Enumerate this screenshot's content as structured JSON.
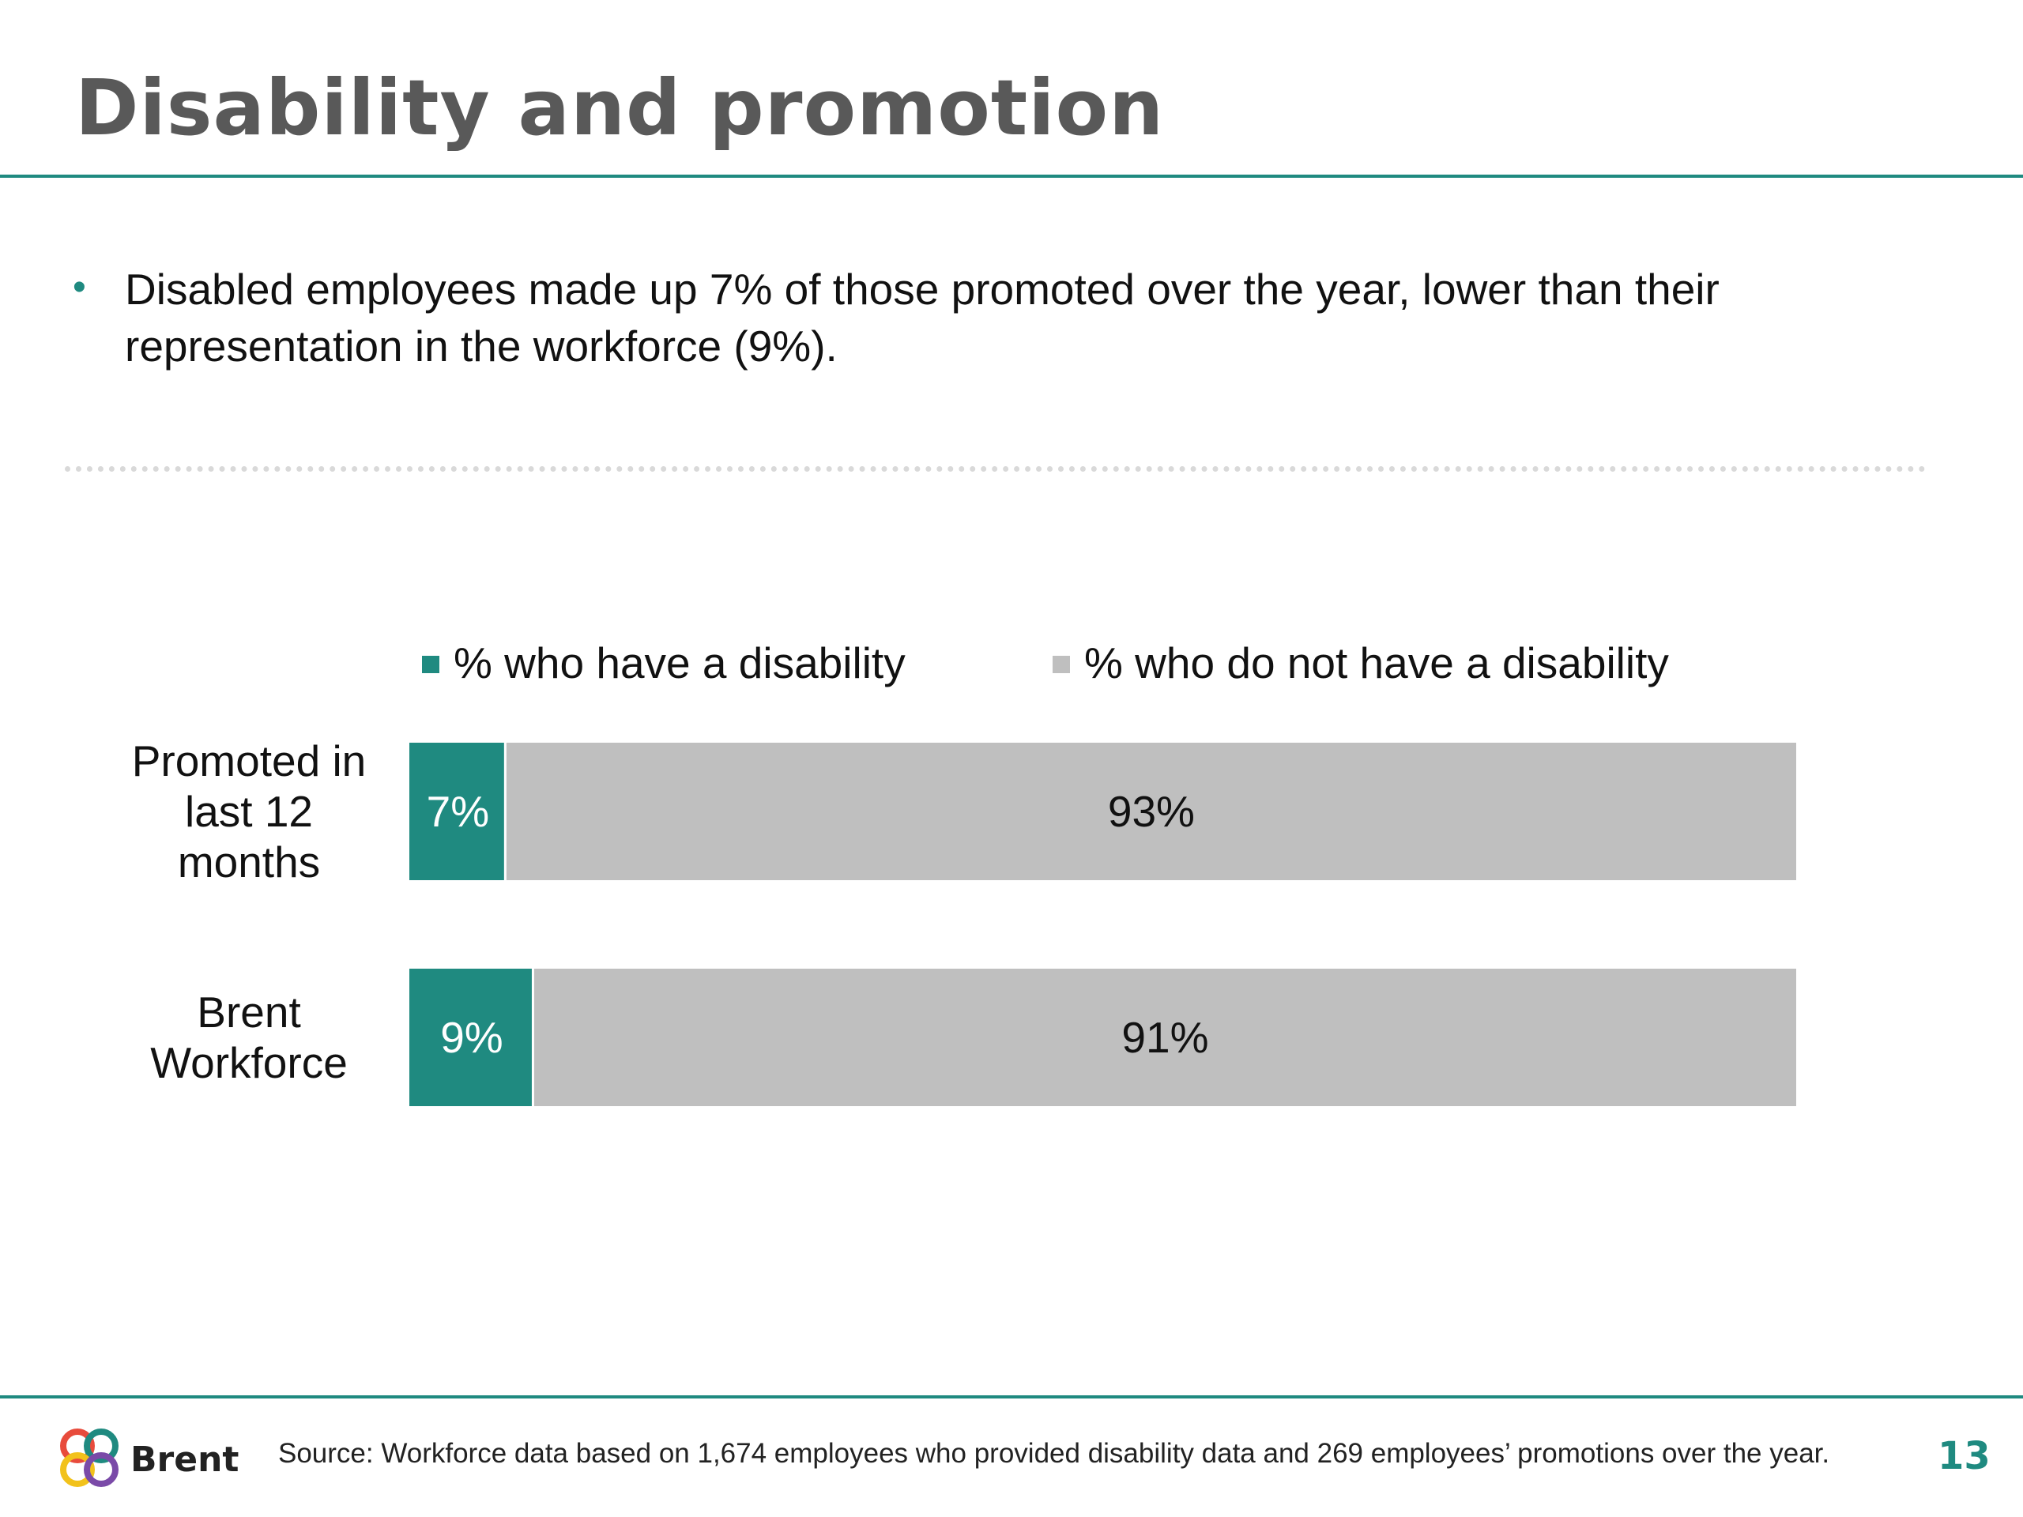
{
  "slide": {
    "title": "Disability and promotion",
    "bullet": "Disabled employees made up 7% of those promoted over the year, lower than their representation in the workforce (9%).",
    "source": "Source: Workforce data based on 1,674 employees who provided disability data and 269 employees’ promotions over the year.",
    "page_number": "13",
    "logo_text": "Brent"
  },
  "colors": {
    "accent": "#1f8a80",
    "grey_bar": "#bfbfbf",
    "title": "#595959"
  },
  "chart_data": {
    "type": "bar",
    "orientation": "horizontal",
    "stacked": true,
    "percent_stacked": true,
    "legend_position": "top",
    "categories": [
      [
        "Promoted in",
        "last 12",
        "months"
      ],
      [
        "Brent",
        "Workforce"
      ]
    ],
    "series": [
      {
        "name": "% who have a disability",
        "values": [
          7,
          9
        ],
        "labels": [
          "7%",
          "9%"
        ],
        "color": "#1f8a80",
        "label_color": "#ffffff"
      },
      {
        "name": "% who do not have a disability",
        "values": [
          93,
          91
        ],
        "labels": [
          "93%",
          "91%"
        ],
        "color": "#bfbfbf",
        "label_color": "#111111"
      }
    ],
    "xlim": [
      0,
      100
    ],
    "grid": false
  }
}
